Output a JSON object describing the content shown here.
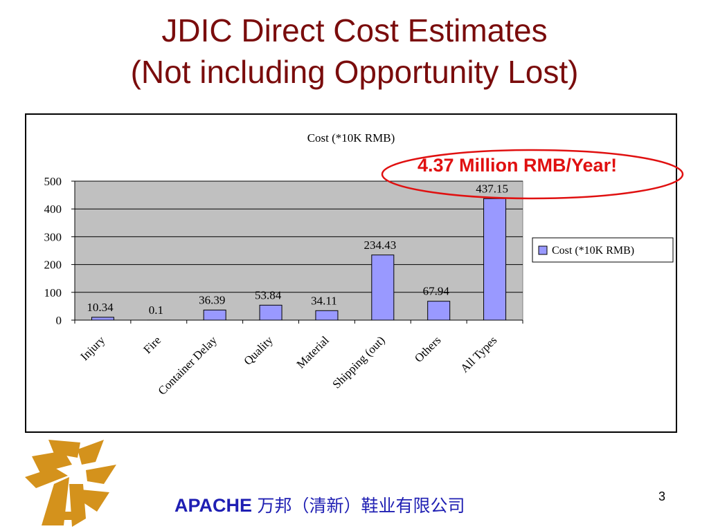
{
  "slide": {
    "title_line1": "JDIC Direct Cost Estimates",
    "title_line2": "(Not including Opportunity Lost)",
    "annotation": "4.37 Million RMB/Year!",
    "footer_brand": "APACHE",
    "footer_company": "万邦（清新）鞋业有限公司",
    "page_number": "3"
  },
  "colors": {
    "title": "#7a0c0c",
    "bar": "#9999ff",
    "plot_background": "#c0c0c0",
    "annotation": "#e01010",
    "footer": "#1f1fb3",
    "logo": "#d4921c"
  },
  "chart_data": {
    "type": "bar",
    "title": "Cost (*10K RMB)",
    "categories": [
      "Injury",
      "Fire",
      "Container Delay",
      "Quality",
      "Material",
      "Shipping (out)",
      "Others",
      "All Types"
    ],
    "series": [
      {
        "name": "Cost (*10K RMB)",
        "values": [
          10.34,
          0.1,
          36.39,
          53.84,
          34.11,
          234.43,
          67.94,
          437.15
        ]
      }
    ],
    "data_labels": [
      "10.34",
      "0.1",
      "36.39",
      "53.84",
      "34.11",
      "234.43",
      "67.94",
      "437.15"
    ],
    "yticks": [
      "0",
      "100",
      "200",
      "300",
      "400",
      "500"
    ],
    "ylim": [
      0,
      500
    ],
    "grid": true,
    "legend": "right"
  }
}
